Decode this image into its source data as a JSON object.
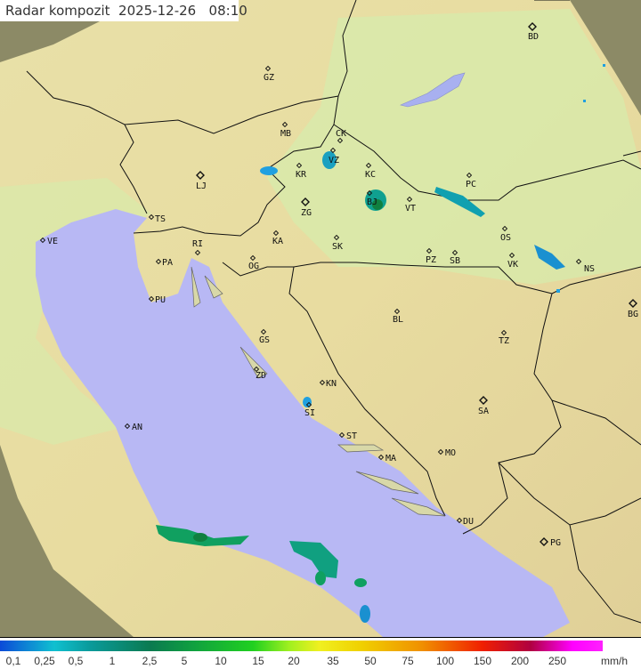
{
  "header": {
    "title": "Radar kompozit",
    "date": "2025-12-26",
    "time": "08:10"
  },
  "legend": {
    "labels": [
      "0,1",
      "0,25",
      "0,5",
      "1",
      "2,5",
      "5",
      "10",
      "15",
      "20",
      "35",
      "50",
      "75",
      "100",
      "150",
      "200",
      "250"
    ],
    "unit": "mm/h"
  },
  "colors": {
    "sea": "#b8b8f4",
    "land_in_coverage": "#e6eeb0",
    "land_outside": "#8a8a6a",
    "rain_light": "#20a0e0",
    "rain_mid": "#10a090",
    "rain_heavy": "#108040"
  },
  "cities": [
    {
      "code": "GZ",
      "capital": false
    },
    {
      "code": "BD",
      "capital": true
    },
    {
      "code": "MB",
      "capital": false
    },
    {
      "code": "CK",
      "capital": false
    },
    {
      "code": "VZ",
      "capital": false
    },
    {
      "code": "KR",
      "capital": false
    },
    {
      "code": "KC",
      "capital": false
    },
    {
      "code": "PC",
      "capital": false
    },
    {
      "code": "LJ",
      "capital": true
    },
    {
      "code": "ZG",
      "capital": true
    },
    {
      "code": "BJ",
      "capital": false
    },
    {
      "code": "VT",
      "capital": false
    },
    {
      "code": "TS",
      "capital": false
    },
    {
      "code": "VE",
      "capital": false
    },
    {
      "code": "RI",
      "capital": false
    },
    {
      "code": "KA",
      "capital": false
    },
    {
      "code": "SK",
      "capital": false
    },
    {
      "code": "OS",
      "capital": false
    },
    {
      "code": "PA",
      "capital": false
    },
    {
      "code": "OG",
      "capital": false
    },
    {
      "code": "PZ",
      "capital": false
    },
    {
      "code": "SB",
      "capital": false
    },
    {
      "code": "VK",
      "capital": false
    },
    {
      "code": "NS",
      "capital": false
    },
    {
      "code": "PU",
      "capital": false
    },
    {
      "code": "BL",
      "capital": false
    },
    {
      "code": "BG",
      "capital": true
    },
    {
      "code": "GS",
      "capital": false
    },
    {
      "code": "TZ",
      "capital": false
    },
    {
      "code": "ZD",
      "capital": false
    },
    {
      "code": "KN",
      "capital": false
    },
    {
      "code": "SI",
      "capital": false
    },
    {
      "code": "SA",
      "capital": true
    },
    {
      "code": "AN",
      "capital": false
    },
    {
      "code": "ST",
      "capital": false
    },
    {
      "code": "MA",
      "capital": false
    },
    {
      "code": "MO",
      "capital": false
    },
    {
      "code": "DU",
      "capital": false
    },
    {
      "code": "PG",
      "capital": true
    }
  ]
}
